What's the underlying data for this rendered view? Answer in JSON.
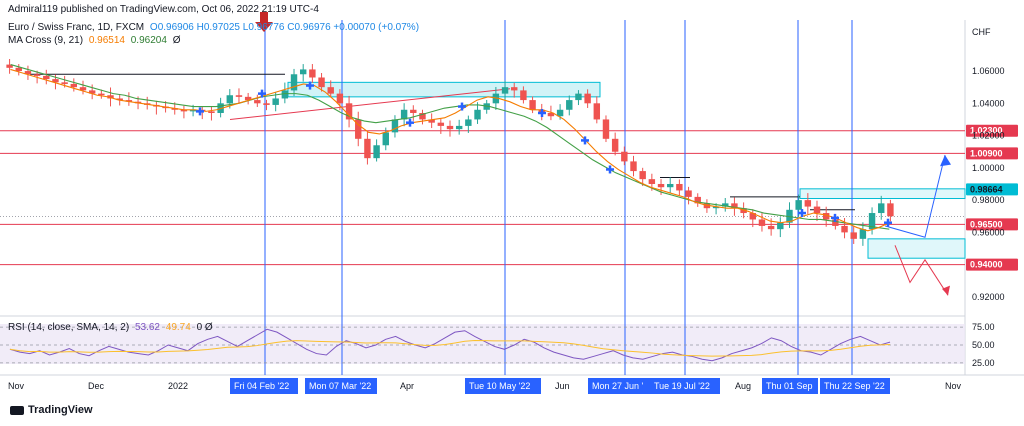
{
  "header": {
    "publisher": "Admiral119 published on TradingView.com, Oct 06, 2022 21:19 UTC-4"
  },
  "legend": {
    "symbol": "Euro / Swiss Franc, 1D, FXCM",
    "ohlc": "O0.96906 H0.97025 L0.96776 C0.96976 +0.00070 (+0.07%)",
    "ma_label": "MA Cross (9, 21)",
    "ma_fast": "0.96514",
    "ma_slow": "0.96204",
    "ma_extra": "Ø",
    "rsi_label": "RSI (14, close, SMA, 14, 2)",
    "rsi_value": "53.62",
    "rsi_sma": "49.74",
    "rsi_extra": "0 Ø"
  },
  "footer": {
    "brand": "TradingView"
  },
  "colors": {
    "up": "#26a69a",
    "down": "#ef5350",
    "ma_fast": "#f57c00",
    "ma_slow": "#43a047",
    "hline": "#e53950",
    "vline": "#2962ff",
    "zone": "#00bcd4",
    "rsi": "#7e57c2",
    "rsi_sma": "#fbc02d"
  },
  "chart_data": {
    "type": "candlestick",
    "currency": "CHF",
    "y_axis_ticks": [
      "1.06000",
      "1.04000",
      "1.02000",
      "1.00000",
      "0.98000",
      "0.96000",
      "0.92000"
    ],
    "ylim": [
      0.915,
      1.078
    ],
    "price_levels": [
      {
        "label": "1.02300",
        "value": 1.023
      },
      {
        "label": "1.00900",
        "value": 1.009
      },
      {
        "label": "0.96500",
        "value": 0.965
      },
      {
        "label": "0.94000",
        "value": 0.94
      }
    ],
    "current_price": {
      "label": "0.98664",
      "value": 0.98664
    },
    "x_axis_labels": [
      "Nov",
      "Dec",
      "2022",
      "Apr",
      "Jun",
      "Aug",
      "Nov"
    ],
    "x_axis_highlighted": [
      "Fri 04 Feb '22",
      "Mon 07 Mar '22",
      "Tue 10 May '22",
      "Mon 27 Jun '",
      "Tue 19 Jul '22",
      "Thu 01 Sep",
      "Thu 22 Sep '22"
    ],
    "price_series": [
      1.062,
      1.06,
      1.058,
      1.057,
      1.055,
      1.053,
      1.052,
      1.05,
      1.048,
      1.046,
      1.045,
      1.043,
      1.042,
      1.041,
      1.04,
      1.039,
      1.038,
      1.037,
      1.036,
      1.035,
      1.036,
      1.035,
      1.034,
      1.04,
      1.045,
      1.044,
      1.042,
      1.04,
      1.039,
      1.043,
      1.048,
      1.058,
      1.061,
      1.056,
      1.05,
      1.046,
      1.04,
      1.03,
      1.018,
      1.006,
      1.014,
      1.022,
      1.03,
      1.036,
      1.034,
      1.03,
      1.028,
      1.026,
      1.024,
      1.026,
      1.03,
      1.036,
      1.04,
      1.046,
      1.05,
      1.048,
      1.042,
      1.036,
      1.034,
      1.032,
      1.036,
      1.042,
      1.046,
      1.04,
      1.03,
      1.018,
      1.01,
      1.004,
      0.998,
      0.993,
      0.99,
      0.988,
      0.99,
      0.986,
      0.982,
      0.978,
      0.975,
      0.976,
      0.978,
      0.975,
      0.972,
      0.968,
      0.964,
      0.962,
      0.966,
      0.974,
      0.98,
      0.976,
      0.972,
      0.968,
      0.964,
      0.96,
      0.956,
      0.962,
      0.972,
      0.978,
      0.97
    ],
    "ma_fast_series": [
      1.061,
      1.059,
      1.057,
      1.055,
      1.053,
      1.051,
      1.049,
      1.047,
      1.045,
      1.044,
      1.042,
      1.041,
      1.04,
      1.039,
      1.038,
      1.037,
      1.036,
      1.036,
      1.035,
      1.036,
      1.038,
      1.04,
      1.042,
      1.044,
      1.046,
      1.048,
      1.05,
      1.052,
      1.051,
      1.047,
      1.041,
      1.034,
      1.027,
      1.022,
      1.021,
      1.023,
      1.026,
      1.028,
      1.029,
      1.03,
      1.031,
      1.034,
      1.038,
      1.042,
      1.044,
      1.043,
      1.041,
      1.038,
      1.036,
      1.036,
      1.034,
      1.03,
      1.024,
      1.017,
      1.01,
      1.004,
      0.999,
      0.995,
      0.991,
      0.988,
      0.986,
      0.984,
      0.982,
      0.979,
      0.977,
      0.976,
      0.975,
      0.975,
      0.973,
      0.97,
      0.967,
      0.966,
      0.967,
      0.97,
      0.972,
      0.971,
      0.969,
      0.966,
      0.963,
      0.961,
      0.963,
      0.966
    ],
    "ma_slow_series": [
      1.064,
      1.062,
      1.06,
      1.058,
      1.056,
      1.054,
      1.052,
      1.05,
      1.048,
      1.046,
      1.045,
      1.043,
      1.042,
      1.041,
      1.04,
      1.039,
      1.038,
      1.038,
      1.038,
      1.039,
      1.04,
      1.042,
      1.044,
      1.045,
      1.046,
      1.046,
      1.045,
      1.042,
      1.038,
      1.034,
      1.031,
      1.029,
      1.028,
      1.029,
      1.03,
      1.031,
      1.033,
      1.035,
      1.037,
      1.038,
      1.039,
      1.039,
      1.038,
      1.036,
      1.034,
      1.032,
      1.029,
      1.025,
      1.02,
      1.015,
      1.01,
      1.005,
      1.001,
      0.997,
      0.994,
      0.991,
      0.988,
      0.985,
      0.983,
      0.981,
      0.979,
      0.978,
      0.977,
      0.976,
      0.975,
      0.974,
      0.972,
      0.971,
      0.97,
      0.969,
      0.968,
      0.968,
      0.967,
      0.966,
      0.965,
      0.964,
      0.963,
      0.962
    ],
    "rsi": {
      "ticks": [
        "75.00",
        "50.00",
        "25.00"
      ],
      "ylim": [
        15,
        85
      ],
      "values": [
        44,
        40,
        38,
        42,
        36,
        40,
        45,
        38,
        35,
        42,
        48,
        44,
        40,
        38,
        36,
        42,
        50,
        46,
        42,
        52,
        58,
        62,
        55,
        48,
        56,
        64,
        72,
        68,
        60,
        52,
        44,
        38,
        36,
        48,
        56,
        52,
        46,
        50,
        58,
        62,
        55,
        50,
        46,
        52,
        60,
        68,
        70,
        62,
        55,
        48,
        44,
        50,
        58,
        54,
        46,
        40,
        36,
        32,
        30,
        34,
        38,
        42,
        36,
        32,
        30,
        34,
        38,
        40,
        36,
        34,
        30,
        28,
        32,
        38,
        42,
        46,
        52,
        60,
        56,
        48,
        42,
        40,
        36,
        44,
        52,
        58,
        62,
        56,
        50,
        54
      ]
    }
  }
}
